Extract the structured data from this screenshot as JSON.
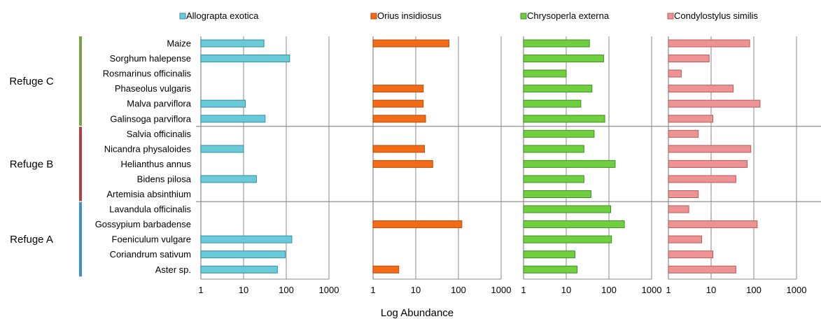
{
  "chart_data": {
    "type": "bar",
    "orientation": "horizontal",
    "x_scale": "log",
    "xlim": [
      1,
      1000
    ],
    "x_ticks": [
      "1",
      "10",
      "100",
      "1000"
    ],
    "xlabel": "Log Abundance",
    "grid": "vertical",
    "legend_position": "top",
    "categories": [
      "Maize",
      "Sorghum halepense",
      "Rosmarinus officinalis",
      "Phaseolus vulgaris",
      "Malva parviflora",
      "Galinsoga parviflora",
      "Salvia officinalis",
      "Nicandra physaloides",
      "Helianthus annus",
      "Bidens pilosa",
      "Artemisia absinthium",
      "Lavandula officinalis",
      "Gossypium barbadense",
      "Foeniculum vulgare",
      "Coriandrum sativum",
      "Aster sp."
    ],
    "groups": [
      {
        "label": "Refuge C",
        "from": 0,
        "to": 5,
        "color": "#77a33f"
      },
      {
        "label": "Refuge B",
        "from": 6,
        "to": 10,
        "color": "#b5413f"
      },
      {
        "label": "Refuge A",
        "from": 11,
        "to": 15,
        "color": "#3b8fd6"
      }
    ],
    "series": [
      {
        "name": "Allograpta exotica",
        "color": "#6bcad8",
        "stroke": "#2f8fa8",
        "values": [
          30,
          120,
          null,
          null,
          11,
          32,
          null,
          10,
          null,
          20,
          null,
          null,
          null,
          135,
          95,
          62
        ]
      },
      {
        "name": "Orius insidiosus",
        "color": "#f26c18",
        "stroke": "#b84a06",
        "values": [
          60,
          null,
          null,
          15,
          15,
          17,
          null,
          16,
          25,
          null,
          null,
          null,
          120,
          null,
          null,
          4
        ]
      },
      {
        "name": "Chrysoperla externa",
        "color": "#6fcf3e",
        "stroke": "#3e8f1e",
        "values": [
          35,
          75,
          10,
          40,
          22,
          80,
          45,
          26,
          140,
          26,
          38,
          110,
          230,
          115,
          16,
          18
        ]
      },
      {
        "name": "Condylostylus similis",
        "color": "#ee9393",
        "stroke": "#b85a5a",
        "values": [
          80,
          9,
          2,
          33,
          140,
          11,
          5,
          85,
          70,
          38,
          5,
          3,
          120,
          6,
          11,
          38
        ]
      }
    ]
  }
}
